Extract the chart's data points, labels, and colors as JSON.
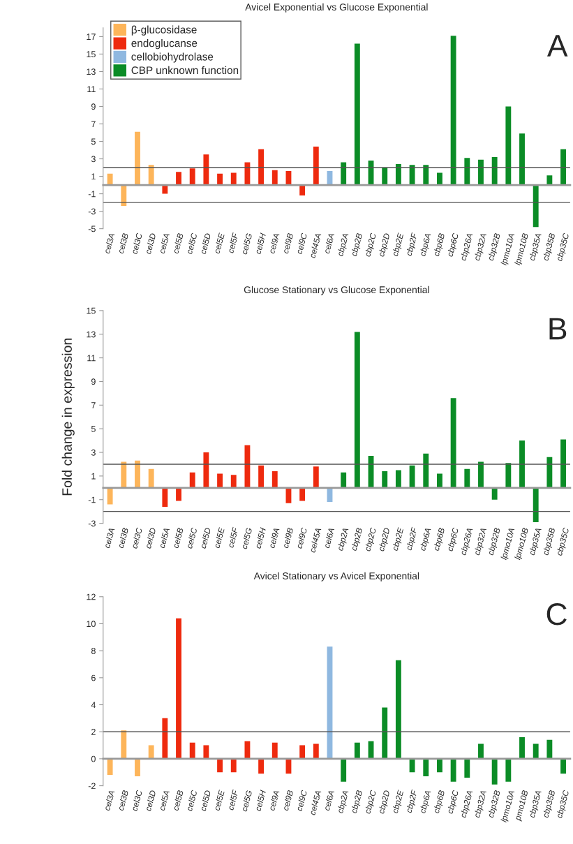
{
  "chart_data": [
    {
      "type": "bar",
      "title": "Avicel Exponential vs Glucose Exponential",
      "annotations": [
        "A"
      ],
      "legend": "top left",
      "categories": [
        "cel3A",
        "cel3B",
        "cel3C",
        "cel3D",
        "cel5A",
        "cel5B",
        "cel5C",
        "cel5D",
        "cel5E",
        "cel5F",
        "cel5G",
        "cel5H",
        "cel9A",
        "cel9B",
        "cel9C",
        "cel45A",
        "cel6A",
        "cbp2A",
        "cbp2B",
        "cbp2C",
        "cbp2D",
        "cbp2E",
        "cbp2F",
        "cbp6A",
        "cbp6B",
        "cbp6C",
        "cbp26A",
        "cbp32A",
        "cbp32B",
        "lpmo10A",
        "lpmo10B",
        "cbp35A",
        "cbp35B",
        "cbp35C"
      ],
      "ylim": [
        -5,
        18
      ],
      "yticks": [
        -5,
        -3,
        -1,
        1,
        3,
        5,
        7,
        9,
        11,
        13,
        15,
        17
      ],
      "ref_lines": [
        {
          "axis": "y",
          "value": 2,
          "color": "#555555"
        },
        {
          "axis": "y",
          "value": -2,
          "color": "#555555"
        }
      ],
      "series": [
        {
          "name": "β-glucosidase",
          "color": "#fdb55a",
          "values": [
            1.3,
            -2.4,
            6.1,
            2.3,
            null,
            null,
            null,
            null,
            null,
            null,
            null,
            null,
            null,
            null,
            null,
            null,
            null,
            null,
            null,
            null,
            null,
            null,
            null,
            null,
            null,
            null,
            null,
            null,
            null,
            null,
            null,
            null,
            null,
            null
          ]
        },
        {
          "name": "endoglucanse",
          "color": "#ee2a0e",
          "values": [
            null,
            null,
            null,
            null,
            -1.0,
            1.5,
            1.9,
            3.5,
            1.3,
            1.4,
            2.6,
            4.1,
            1.7,
            1.6,
            -1.2,
            4.4,
            null,
            null,
            null,
            null,
            null,
            null,
            null,
            null,
            null,
            null,
            null,
            null,
            null,
            null,
            null,
            null,
            null,
            null
          ]
        },
        {
          "name": "cellobiohydrolase",
          "color": "#8fb8e0",
          "values": [
            null,
            null,
            null,
            null,
            null,
            null,
            null,
            null,
            null,
            null,
            null,
            null,
            null,
            null,
            null,
            null,
            1.6,
            null,
            null,
            null,
            null,
            null,
            null,
            null,
            null,
            null,
            null,
            null,
            null,
            null,
            null,
            null,
            null,
            null
          ]
        },
        {
          "name": "CBP unknown function",
          "color": "#0b8c26",
          "values": [
            null,
            null,
            null,
            null,
            null,
            null,
            null,
            null,
            null,
            null,
            null,
            null,
            null,
            null,
            null,
            null,
            null,
            2.6,
            16.2,
            2.8,
            2.0,
            2.4,
            2.3,
            2.3,
            1.4,
            17.1,
            3.1,
            2.9,
            3.2,
            9.0,
            5.9,
            -4.8,
            1.1,
            4.1
          ]
        }
      ]
    },
    {
      "type": "bar",
      "title": "Glucose Stationary vs Glucose Exponential",
      "ylabel": "Fold change in expression",
      "annotations": [
        "B"
      ],
      "categories": [
        "cel3A",
        "cel3B",
        "cel3C",
        "cel3D",
        "cel5A",
        "cel5B",
        "cel5C",
        "cel5D",
        "cel5E",
        "cel5F",
        "cel5G",
        "cel5H",
        "cel9A",
        "cel9B",
        "cel9C",
        "cel45A",
        "cel6A",
        "cbp2A",
        "cbp2B",
        "cbp2C",
        "cbp2D",
        "cbp2E",
        "cbp2F",
        "cbp6A",
        "cbp6B",
        "cbp6C",
        "cbp26A",
        "cbp32A",
        "cbp32B",
        "lpmo10A",
        "lpmo10B",
        "cbp35A",
        "cbp35B",
        "cbp35C"
      ],
      "ylim": [
        -3,
        15
      ],
      "yticks": [
        -3,
        -1,
        1,
        3,
        5,
        7,
        9,
        11,
        13,
        15
      ],
      "ref_lines": [
        {
          "axis": "y",
          "value": 2,
          "color": "#555555"
        },
        {
          "axis": "y",
          "value": -2,
          "color": "#555555"
        }
      ],
      "series": [
        {
          "color": "#fdb55a",
          "values": [
            -1.4,
            2.2,
            2.3,
            1.6,
            null,
            null,
            null,
            null,
            null,
            null,
            null,
            null,
            null,
            null,
            null,
            null,
            null,
            null,
            null,
            null,
            null,
            null,
            null,
            null,
            null,
            null,
            null,
            null,
            null,
            null,
            null,
            null,
            null,
            null
          ]
        },
        {
          "color": "#ee2a0e",
          "values": [
            null,
            null,
            null,
            null,
            -1.6,
            -1.1,
            1.3,
            3.0,
            1.2,
            1.1,
            3.6,
            1.9,
            1.4,
            -1.3,
            -1.1,
            1.8,
            null,
            null,
            null,
            null,
            null,
            null,
            null,
            null,
            null,
            null,
            null,
            null,
            null,
            null,
            null,
            null,
            null,
            null
          ]
        },
        {
          "color": "#8fb8e0",
          "values": [
            null,
            null,
            null,
            null,
            null,
            null,
            null,
            null,
            null,
            null,
            null,
            null,
            null,
            null,
            null,
            null,
            -1.2,
            null,
            null,
            null,
            null,
            null,
            null,
            null,
            null,
            null,
            null,
            null,
            null,
            null,
            null,
            null,
            null,
            null
          ]
        },
        {
          "color": "#0b8c26",
          "values": [
            null,
            null,
            null,
            null,
            null,
            null,
            null,
            null,
            null,
            null,
            null,
            null,
            null,
            null,
            null,
            null,
            null,
            1.3,
            13.2,
            2.7,
            1.4,
            1.5,
            1.9,
            2.9,
            1.2,
            7.6,
            1.6,
            2.2,
            -1.0,
            2.1,
            4.0,
            -2.9,
            2.6,
            4.1
          ]
        }
      ]
    },
    {
      "type": "bar",
      "title": "Avicel Stationary vs Avicel Exponential",
      "annotations": [
        "C"
      ],
      "categories": [
        "cel3A",
        "cel3B",
        "cel3C",
        "cel3D",
        "cel5A",
        "cel5B",
        "cel5C",
        "cel5D",
        "cel5E",
        "cel5F",
        "cel5G",
        "cel5H",
        "cel9A",
        "cel9B",
        "cel9C",
        "cel45A",
        "cel6A",
        "cbp2A",
        "cbp2B",
        "cbp2C",
        "cbp2D",
        "cbp2E",
        "cbp2F",
        "cbp6A",
        "cbp6B",
        "cbp6C",
        "cbp26A",
        "cbp32A",
        "cbp32B",
        "lpmo10A",
        "pmo10B",
        "cbp35A",
        "cbp35B",
        "cbp35C"
      ],
      "ylim": [
        -2,
        12
      ],
      "yticks": [
        -2,
        0,
        2,
        4,
        6,
        8,
        10,
        12
      ],
      "ref_lines": [
        {
          "axis": "y",
          "value": 2,
          "color": "#555555"
        }
      ],
      "series": [
        {
          "color": "#fdb55a",
          "values": [
            -1.2,
            2.1,
            -1.3,
            1.0,
            null,
            null,
            null,
            null,
            null,
            null,
            null,
            null,
            null,
            null,
            null,
            null,
            null,
            null,
            null,
            null,
            null,
            null,
            null,
            null,
            null,
            null,
            null,
            null,
            null,
            null,
            null,
            null,
            null,
            null
          ]
        },
        {
          "color": "#ee2a0e",
          "values": [
            null,
            null,
            null,
            null,
            3.0,
            10.4,
            1.2,
            1.0,
            -1.0,
            -1.0,
            1.3,
            -1.1,
            1.2,
            -1.1,
            1.0,
            1.1,
            null,
            null,
            null,
            null,
            null,
            null,
            null,
            null,
            null,
            null,
            null,
            null,
            null,
            null,
            null,
            null,
            null,
            null
          ]
        },
        {
          "color": "#8fb8e0",
          "values": [
            null,
            null,
            null,
            null,
            null,
            null,
            null,
            null,
            null,
            null,
            null,
            null,
            null,
            null,
            null,
            null,
            8.3,
            null,
            null,
            null,
            null,
            null,
            null,
            null,
            null,
            null,
            null,
            null,
            null,
            null,
            null,
            null,
            null,
            null
          ]
        },
        {
          "color": "#0b8c26",
          "values": [
            null,
            null,
            null,
            null,
            null,
            null,
            null,
            null,
            null,
            null,
            null,
            null,
            null,
            null,
            null,
            null,
            null,
            -1.7,
            1.2,
            1.3,
            3.8,
            7.3,
            -1.0,
            -1.3,
            -1.0,
            -1.7,
            -1.4,
            1.1,
            -1.9,
            -1.7,
            1.6,
            1.1,
            1.4,
            -1.1
          ]
        }
      ]
    }
  ]
}
